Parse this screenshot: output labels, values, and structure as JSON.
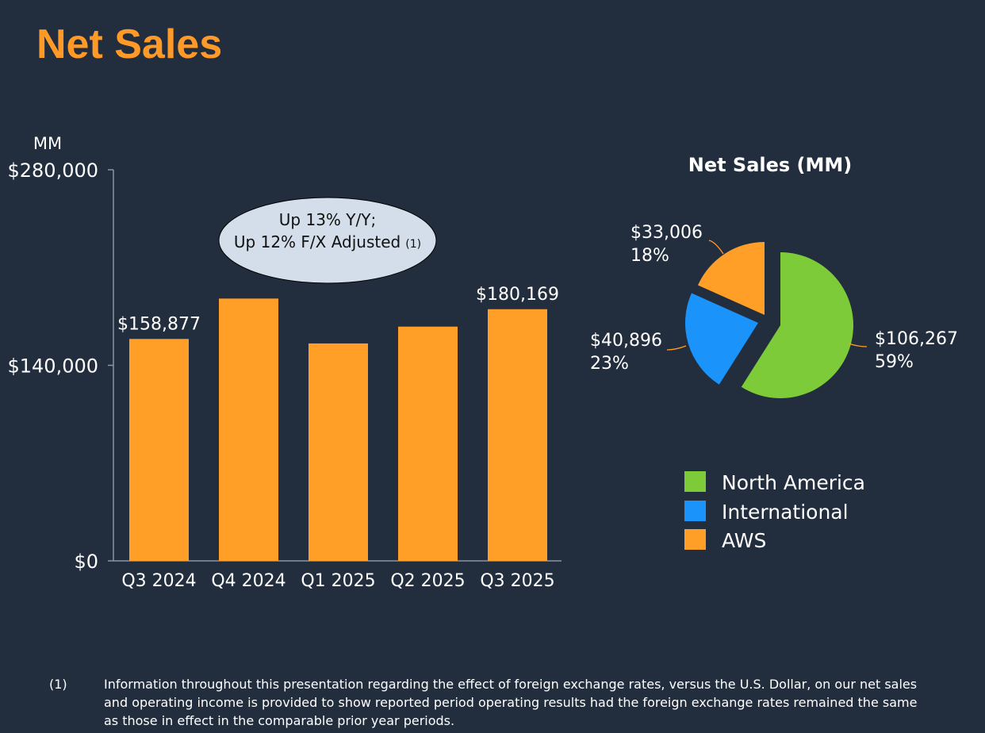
{
  "title": "Net Sales",
  "colors": {
    "background": "#222d3d",
    "title": "#ff9a28",
    "bar": "#ff9f28",
    "north_america": "#7ecb3a",
    "international": "#1a94fb",
    "aws": "#ff9f28",
    "callout": "#d3deea"
  },
  "chart_data": [
    {
      "type": "bar",
      "title": "",
      "unit_label": "MM",
      "categories": [
        "Q3 2024",
        "Q4 2024",
        "Q1 2025",
        "Q2 2025",
        "Q3 2025"
      ],
      "values": [
        158877,
        187792,
        155667,
        167702,
        180169
      ],
      "data_labels": [
        {
          "index": 0,
          "text": "$158,877"
        },
        {
          "index": 4,
          "text": "$180,169"
        }
      ],
      "y_ticks": [
        {
          "value": 0,
          "label": "$0"
        },
        {
          "value": 140000,
          "label": "$140,000"
        },
        {
          "value": 280000,
          "label": "$280,000"
        }
      ],
      "ylim": [
        0,
        280000
      ],
      "callout": {
        "line1": "Up 13% Y/Y;",
        "line2": "Up 12% F/X Adjusted",
        "note": "(1)"
      }
    },
    {
      "type": "pie",
      "title": "Net Sales (MM)",
      "slices": [
        {
          "name": "North America",
          "value": 106267,
          "label": "$106,267",
          "percent": "59%"
        },
        {
          "name": "International",
          "value": 40896,
          "label": "$40,896",
          "percent": "23%"
        },
        {
          "name": "AWS",
          "value": 33006,
          "label": "$33,006",
          "percent": "18%"
        }
      ],
      "legend": [
        "North America",
        "International",
        "AWS"
      ]
    }
  ],
  "footnote": {
    "number": "(1)",
    "text": "Information throughout this presentation regarding the effect of foreign exchange rates, versus the U.S. Dollar, on our net sales and operating income is provided to show reported period operating results had the foreign exchange rates remained the same as those in effect in the comparable prior year periods."
  }
}
